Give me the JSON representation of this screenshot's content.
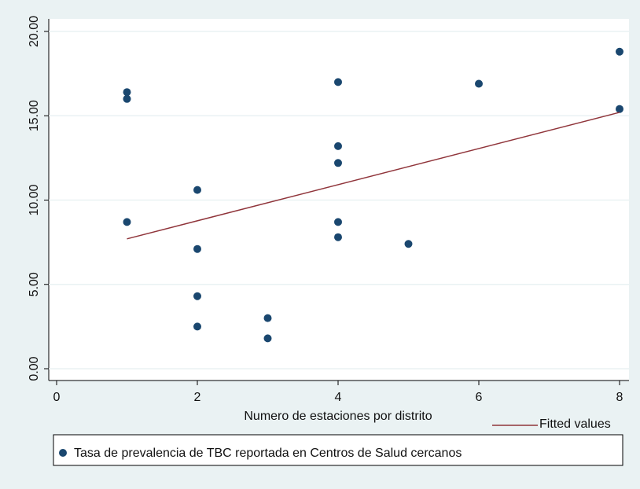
{
  "chart_data": {
    "type": "scatter",
    "xlabel": "Numero de estaciones por distrito",
    "xlim": [
      0,
      8
    ],
    "xticks": [
      0,
      2,
      4,
      6,
      8
    ],
    "ylim": [
      0,
      20
    ],
    "yticks": [
      {
        "value": 0,
        "label": "0.00"
      },
      {
        "value": 5,
        "label": "5.00"
      },
      {
        "value": 10,
        "label": "10.00"
      },
      {
        "value": 15,
        "label": "15.00"
      },
      {
        "value": 20,
        "label": "20.00"
      }
    ],
    "grid": true,
    "series": [
      {
        "name": "Tasa de prevalencia de TBC reportada en Centros de Salud cercanos",
        "type": "scatter",
        "color": "#1a476f",
        "x": [
          1,
          1,
          1,
          2,
          2,
          2,
          2,
          3,
          3,
          4,
          4,
          4,
          4,
          4,
          5,
          6,
          8,
          8
        ],
        "values": [
          16.4,
          16.0,
          8.7,
          10.6,
          7.1,
          4.3,
          2.5,
          3.0,
          1.8,
          17.0,
          13.2,
          12.2,
          8.7,
          7.8,
          7.4,
          16.9,
          18.8,
          15.4
        ]
      },
      {
        "name": "Fitted values",
        "type": "line",
        "color": "#90353b",
        "x": [
          1,
          8
        ],
        "values": [
          7.7,
          15.2
        ]
      }
    ]
  }
}
